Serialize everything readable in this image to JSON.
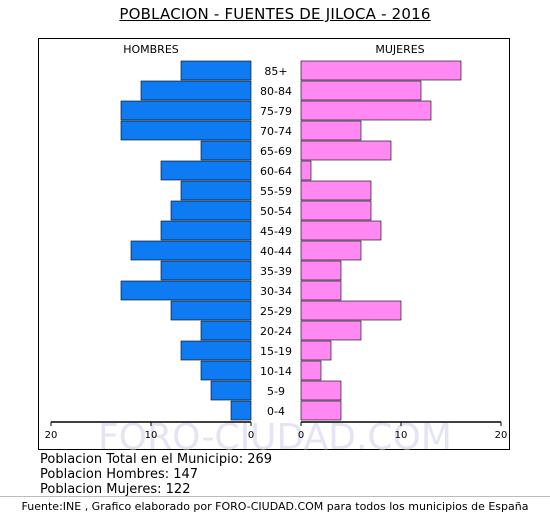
{
  "chart_data": {
    "type": "bar",
    "title": "POBLACION - FUENTES DE JILOCA - 2016",
    "left_label": "HOMBRES",
    "right_label": "MUJERES",
    "categories": [
      "85+",
      "80-84",
      "75-79",
      "70-74",
      "65-69",
      "60-64",
      "55-59",
      "50-54",
      "45-49",
      "40-44",
      "35-39",
      "30-34",
      "25-29",
      "20-24",
      "15-19",
      "10-14",
      "5-9",
      "0-4"
    ],
    "series": [
      {
        "name": "HOMBRES",
        "values": [
          7,
          11,
          13,
          13,
          5,
          9,
          7,
          8,
          9,
          12,
          9,
          13,
          8,
          5,
          7,
          5,
          4,
          2
        ]
      },
      {
        "name": "MUJERES",
        "values": [
          16,
          12,
          13,
          6,
          9,
          1,
          7,
          7,
          8,
          6,
          4,
          4,
          10,
          6,
          3,
          2,
          4,
          4
        ]
      }
    ],
    "x_ticks_left": [
      "20",
      "10",
      "0"
    ],
    "x_ticks_right": [
      "0",
      "10",
      "20"
    ],
    "xlim": [
      0,
      20
    ],
    "colors": {
      "hombres": "#0f7bf2",
      "mujeres": "#ff88f2"
    },
    "grid": false,
    "watermark": "FORO-CIUDAD.COM"
  },
  "stats": {
    "total": "Poblacion Total en el Municipio: 269",
    "hombres": "Poblacion Hombres: 147",
    "mujeres": "Poblacion Mujeres: 122"
  },
  "footer": "Fuente:INE , Grafico elaborado por FORO-CIUDAD.COM para todos los municipios de España"
}
